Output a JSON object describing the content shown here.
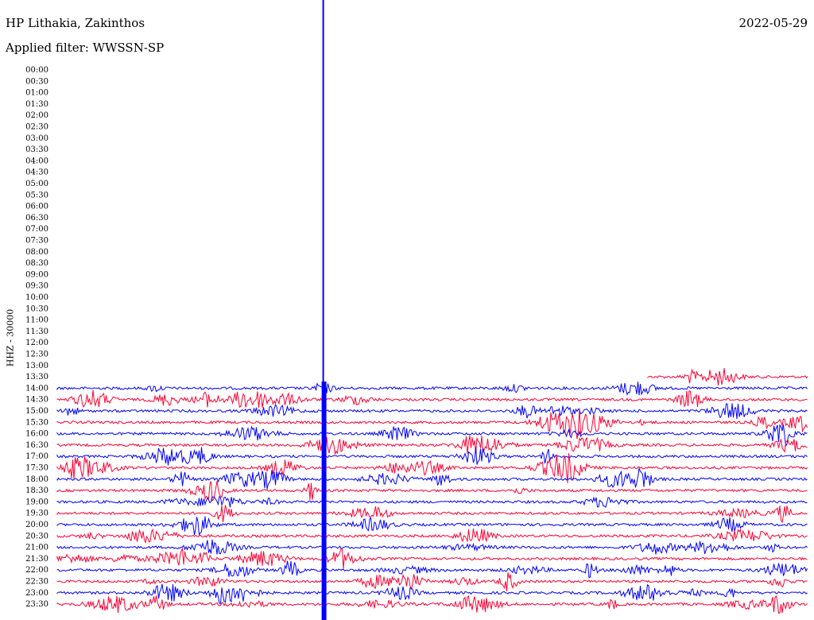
{
  "header": {
    "station": "HP Lithakia, Zakinthos",
    "date": "2022-05-29",
    "filter_label": "Applied filter: WWSSN-SP"
  },
  "chart_data": {
    "type": "line",
    "title": "HP Lithakia, Zakinthos",
    "ylabel": "HHZ - 30000",
    "xlabel": "",
    "trace_colors": [
      "#0000ff",
      "#ff0033"
    ],
    "time_labels": [
      "00:00",
      "00:30",
      "01:00",
      "01:30",
      "02:00",
      "02:30",
      "03:00",
      "03:30",
      "04:00",
      "04:30",
      "05:00",
      "05:30",
      "06:00",
      "06:30",
      "07:00",
      "07:30",
      "08:00",
      "08:30",
      "09:00",
      "09:30",
      "10:00",
      "10:30",
      "11:00",
      "11:30",
      "12:00",
      "12:30",
      "13:00",
      "13:30",
      "14:00",
      "14:30",
      "15:00",
      "15:30",
      "16:00",
      "16:30",
      "17:00",
      "17:30",
      "18:00",
      "18:30",
      "19:00",
      "19:30",
      "20:00",
      "20:30",
      "21:00",
      "21:30",
      "22:00",
      "22:30",
      "23:00",
      "23:30"
    ],
    "first_recorded_row": "13:30",
    "major_event": {
      "row": "14:00",
      "x_fraction": 0.275,
      "description": "large amplitude event"
    }
  }
}
